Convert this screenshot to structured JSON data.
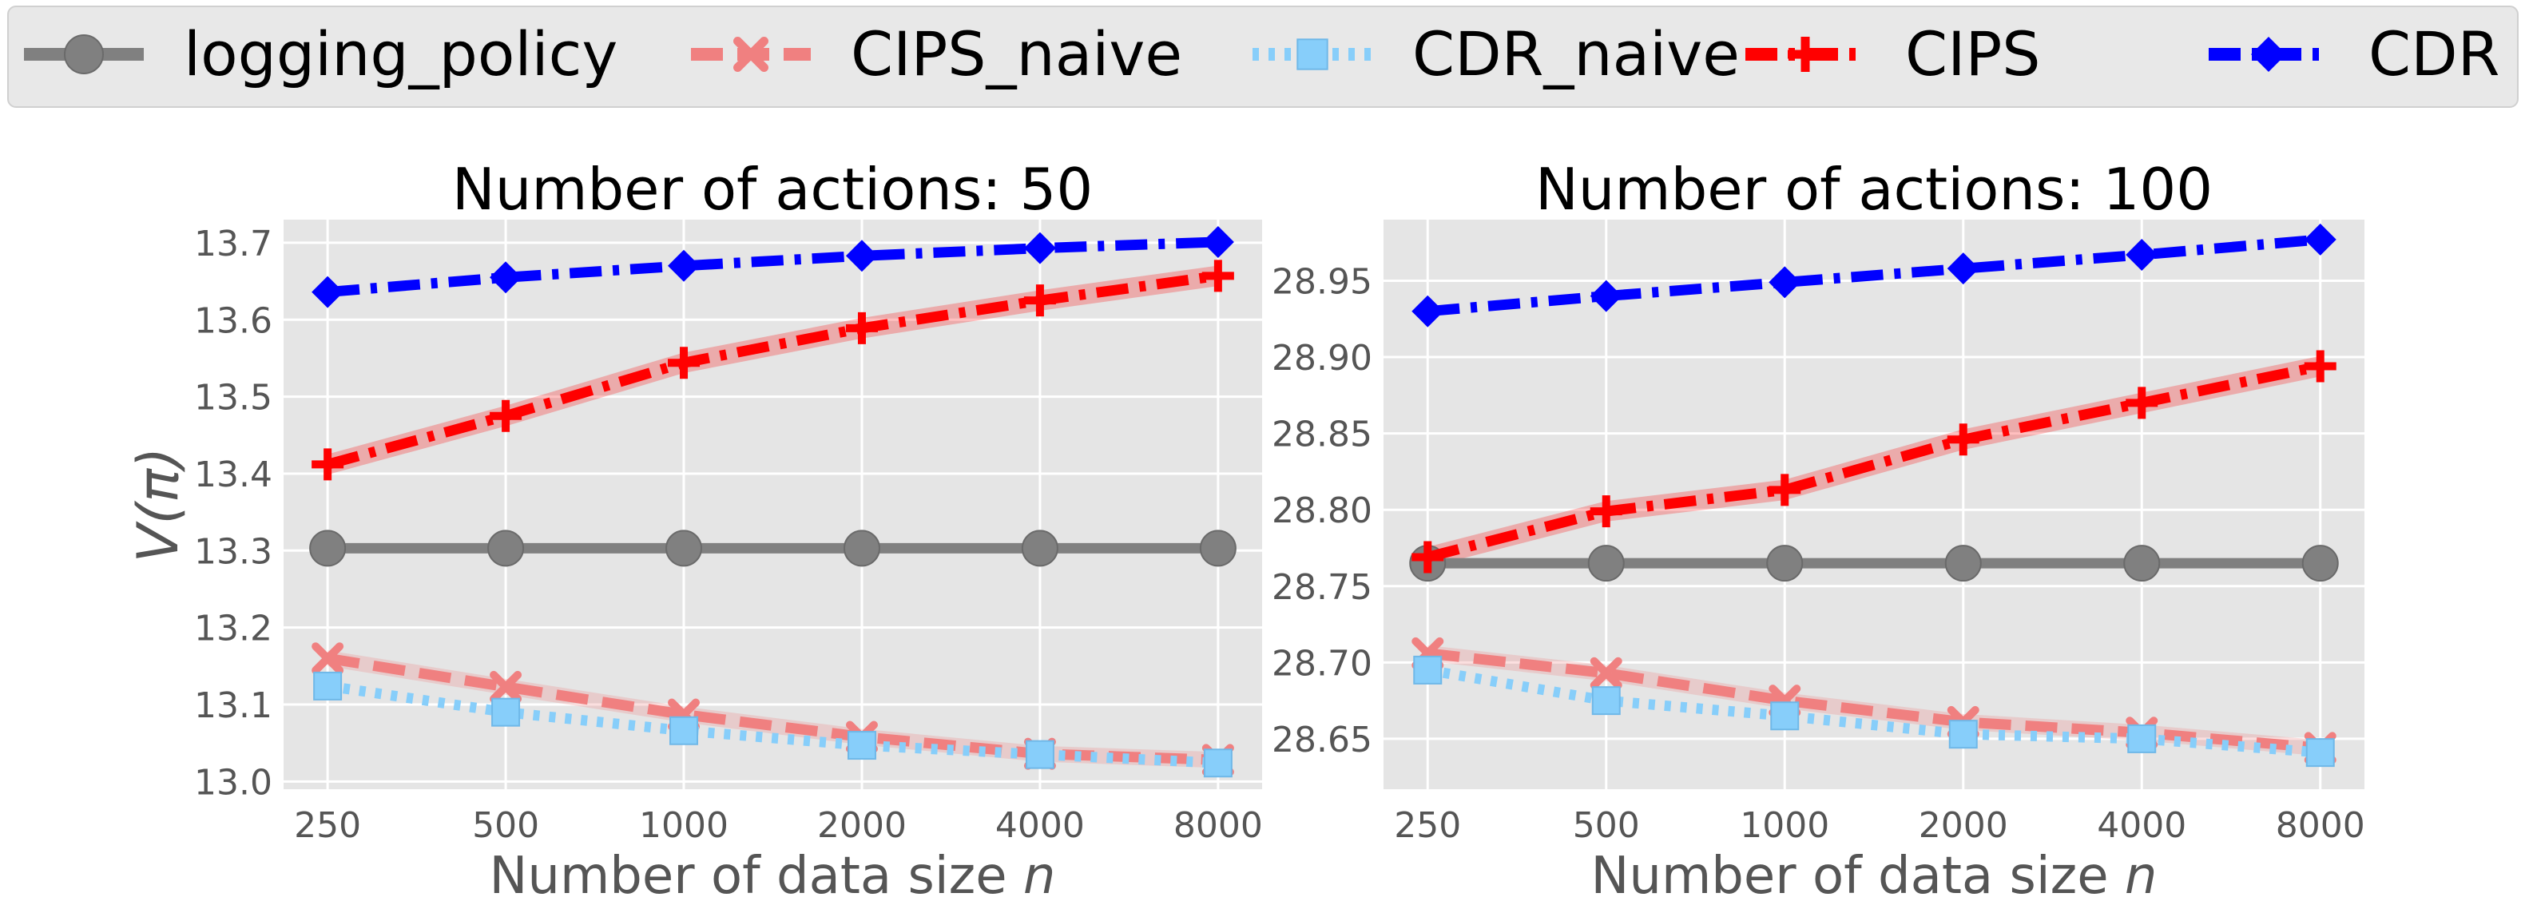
{
  "legend": {
    "entries": [
      {
        "label": "logging_policy",
        "color": "#808080",
        "marker": "circle",
        "dash": "solid"
      },
      {
        "label": "CIPS_naive",
        "color": "#f08080",
        "marker": "x",
        "dash": "dashed"
      },
      {
        "label": "CDR_naive",
        "color": "#87cefa",
        "marker": "square",
        "dash": "dotted"
      },
      {
        "label": "CIPS",
        "color": "#ff0000",
        "marker": "plus",
        "dash": "dashdot"
      },
      {
        "label": "CDR",
        "color": "#0000ff",
        "marker": "diamond",
        "dash": "dashdot"
      }
    ]
  },
  "chart_data": [
    {
      "type": "line",
      "title": "Number of actions: 50",
      "xlabel": "Number of data size n",
      "ylabel": "V(π)",
      "x_scale": "log2",
      "x": [
        250,
        500,
        1000,
        2000,
        4000,
        8000
      ],
      "x_ticks": [
        "250",
        "500",
        "1000",
        "2000",
        "4000",
        "8000"
      ],
      "ylim": [
        12.99,
        13.73
      ],
      "y_ticks": [
        13.0,
        13.1,
        13.2,
        13.3,
        13.4,
        13.5,
        13.6,
        13.7
      ],
      "y_tick_labels": [
        "13.0",
        "13.1",
        "13.2",
        "13.3",
        "13.4",
        "13.5",
        "13.6",
        "13.7"
      ],
      "grid": true,
      "series": [
        {
          "name": "logging_policy",
          "values": [
            13.303,
            13.303,
            13.303,
            13.303,
            13.303,
            13.303
          ]
        },
        {
          "name": "CIPS_naive",
          "values": [
            13.16,
            13.123,
            13.087,
            13.058,
            13.036,
            13.028
          ]
        },
        {
          "name": "CDR_naive",
          "values": [
            13.124,
            13.09,
            13.066,
            13.047,
            13.035,
            13.024
          ]
        },
        {
          "name": "CIPS",
          "values": [
            13.412,
            13.475,
            13.544,
            13.589,
            13.625,
            13.657
          ]
        },
        {
          "name": "CDR",
          "values": [
            13.636,
            13.655,
            13.67,
            13.683,
            13.693,
            13.701
          ]
        }
      ]
    },
    {
      "type": "line",
      "title": "Number of actions: 100",
      "xlabel": "Number of data size n",
      "ylabel": "",
      "x_scale": "log2",
      "x": [
        250,
        500,
        1000,
        2000,
        4000,
        8000
      ],
      "x_ticks": [
        "250",
        "500",
        "1000",
        "2000",
        "4000",
        "8000"
      ],
      "ylim": [
        28.617,
        28.99
      ],
      "y_ticks": [
        28.65,
        28.7,
        28.75,
        28.8,
        28.85,
        28.9,
        28.95
      ],
      "y_tick_labels": [
        "28.65",
        "28.70",
        "28.75",
        "28.80",
        "28.85",
        "28.90",
        "28.95"
      ],
      "grid": true,
      "series": [
        {
          "name": "logging_policy",
          "values": [
            28.765,
            28.765,
            28.765,
            28.765,
            28.765,
            28.765
          ]
        },
        {
          "name": "CIPS_naive",
          "values": [
            28.706,
            28.693,
            28.675,
            28.661,
            28.654,
            28.644
          ]
        },
        {
          "name": "CDR_naive",
          "values": [
            28.695,
            28.675,
            28.665,
            28.653,
            28.65,
            28.641
          ]
        },
        {
          "name": "CIPS",
          "values": [
            28.769,
            28.799,
            28.813,
            28.846,
            28.87,
            28.894
          ]
        },
        {
          "name": "CDR",
          "values": [
            28.93,
            28.94,
            28.949,
            28.958,
            28.967,
            28.977
          ]
        }
      ]
    }
  ]
}
